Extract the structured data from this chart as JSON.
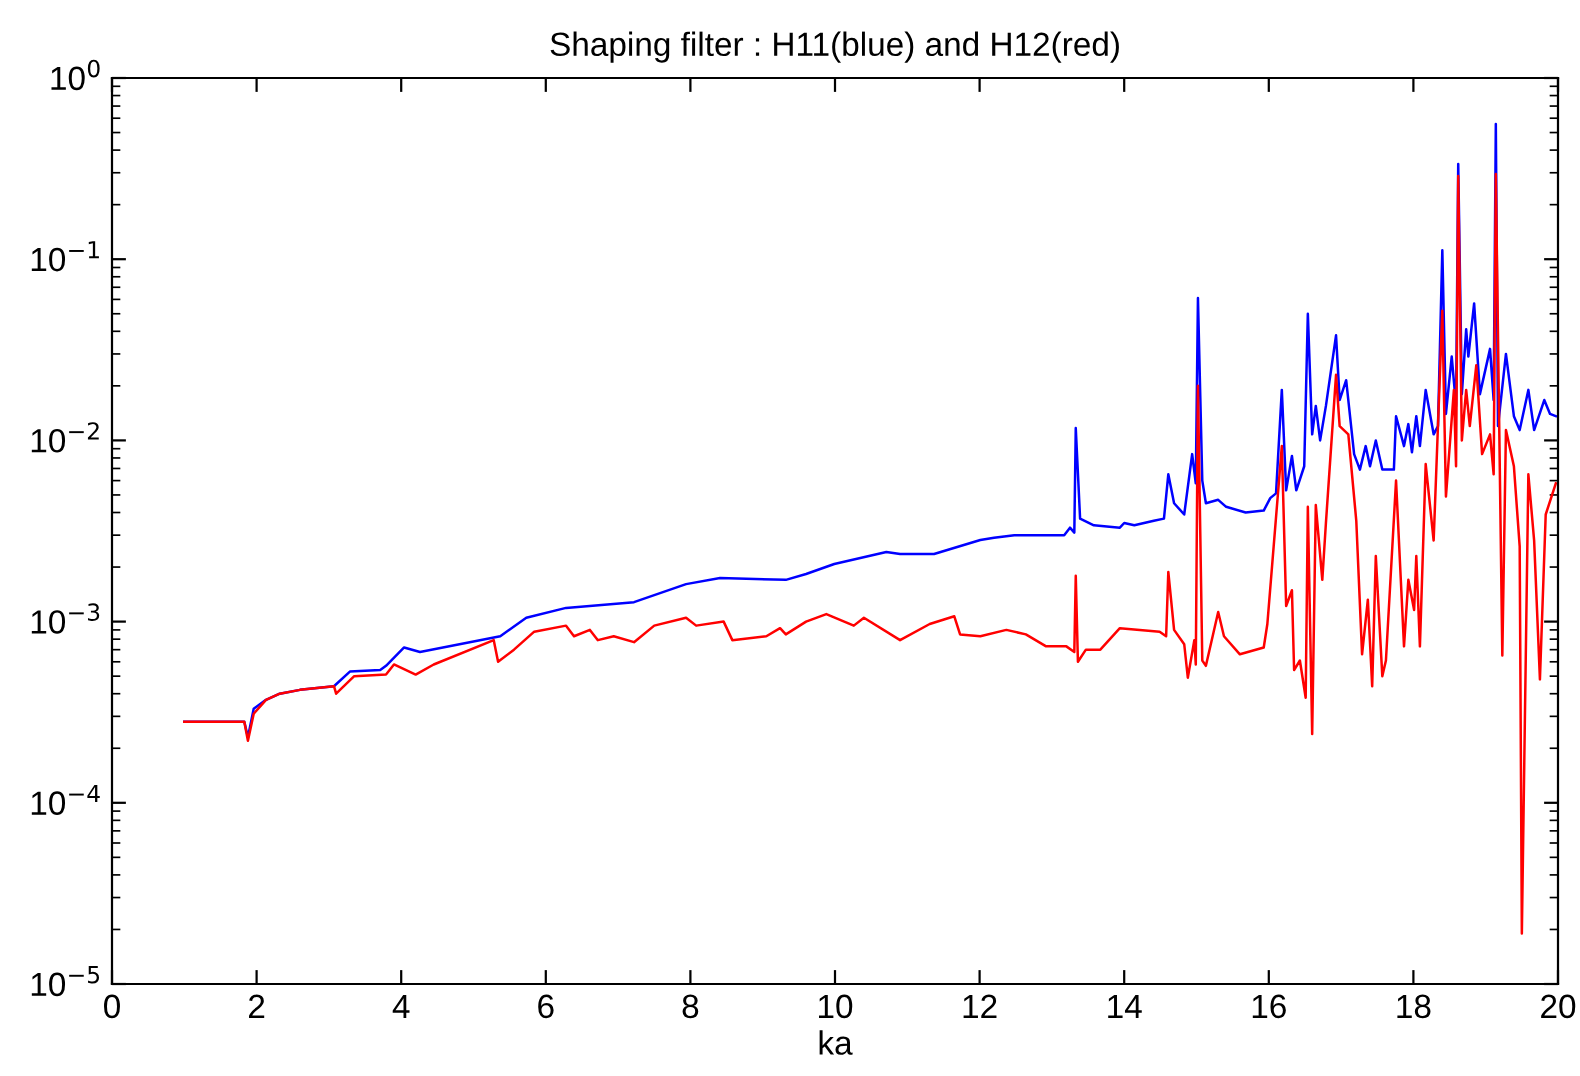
{
  "chart_data": {
    "type": "line",
    "title": "Shaping filter : H11(blue) and H12(red)",
    "xlabel": "ka",
    "log": "y",
    "xlim": [
      0,
      20
    ],
    "ylim": [
      1e-05,
      1
    ],
    "xticks": [
      0,
      2,
      4,
      6,
      8,
      10,
      12,
      14,
      16,
      18,
      20
    ],
    "yticks": [
      {
        "value": 1e-05,
        "label": "10$^{−5}$"
      },
      {
        "value": 0.0001,
        "label": "10$^{−4}$"
      },
      {
        "value": 0.001,
        "label": "10$^{−3}$"
      },
      {
        "value": 0.01,
        "label": "10$^{−2}$"
      },
      {
        "value": 0.1,
        "label": "10$^{−1}$"
      },
      {
        "value": 1,
        "label": "10$^{0}$"
      }
    ],
    "grid": false,
    "marker": "none",
    "line_style": "solid",
    "series": [
      {
        "color": "#0000ff",
        "x": [
          1.0,
          1.83,
          1.88,
          1.96,
          2.13,
          2.32,
          2.6,
          3.07,
          3.29,
          3.71,
          3.79,
          4.04,
          4.26,
          5.37,
          5.73,
          6.28,
          7.22,
          7.94,
          8.41,
          9.32,
          9.6,
          9.99,
          10.71,
          10.9,
          11.37,
          12.01,
          12.2,
          12.48,
          13.17,
          13.25,
          13.31,
          13.33,
          13.39,
          13.58,
          13.94,
          14.0,
          14.14,
          14.41,
          14.55,
          14.61,
          14.69,
          14.83,
          14.94,
          14.99,
          15.02,
          15.08,
          15.13,
          15.3,
          15.41,
          15.68,
          15.93,
          16.02,
          16.1,
          16.18,
          16.24,
          16.32,
          16.38,
          16.49,
          16.54,
          16.6,
          16.65,
          16.71,
          16.79,
          16.93,
          16.98,
          17.07,
          17.18,
          17.26,
          17.34,
          17.4,
          17.48,
          17.57,
          17.73,
          17.76,
          17.87,
          17.93,
          17.98,
          18.04,
          18.09,
          18.17,
          18.28,
          18.34,
          18.4,
          18.45,
          18.53,
          18.59,
          18.62,
          18.67,
          18.73,
          18.76,
          18.84,
          18.92,
          19.06,
          19.11,
          19.14,
          19.17,
          19.28,
          19.39,
          19.47,
          19.59,
          19.67,
          19.81,
          19.89,
          19.97
        ],
        "values": [
          0.00028,
          0.00028,
          0.00023,
          0.00033,
          0.00037,
          0.0004,
          0.00042,
          0.00044,
          0.00053,
          0.00054,
          0.00057,
          0.00072,
          0.00068,
          0.00083,
          0.00105,
          0.00119,
          0.00128,
          0.00161,
          0.00174,
          0.0017,
          0.00183,
          0.00208,
          0.00242,
          0.00236,
          0.00236,
          0.00282,
          0.0029,
          0.003,
          0.003,
          0.0033,
          0.0031,
          0.0117,
          0.0037,
          0.0034,
          0.0033,
          0.0035,
          0.0034,
          0.0036,
          0.0037,
          0.0065,
          0.0045,
          0.0039,
          0.0084,
          0.0058,
          0.061,
          0.006,
          0.0045,
          0.0047,
          0.0043,
          0.004,
          0.0041,
          0.0048,
          0.0051,
          0.019,
          0.0053,
          0.0082,
          0.0053,
          0.0072,
          0.05,
          0.0108,
          0.0155,
          0.01,
          0.0155,
          0.038,
          0.0167,
          0.0215,
          0.0084,
          0.0069,
          0.0093,
          0.0072,
          0.01,
          0.0069,
          0.0069,
          0.0136,
          0.0093,
          0.0123,
          0.0086,
          0.0136,
          0.0093,
          0.019,
          0.0108,
          0.012,
          0.112,
          0.014,
          0.029,
          0.0155,
          0.335,
          0.018,
          0.041,
          0.029,
          0.057,
          0.018,
          0.032,
          0.0167,
          0.557,
          0.012,
          0.03,
          0.0136,
          0.0114,
          0.019,
          0.0114,
          0.0167,
          0.014,
          0.0136
        ]
      },
      {
        "color": "#ff0000",
        "x": [
          1.0,
          1.83,
          1.88,
          1.96,
          2.13,
          2.32,
          2.6,
          3.07,
          3.1,
          3.35,
          3.79,
          3.9,
          4.2,
          4.45,
          5.28,
          5.34,
          5.56,
          5.84,
          6.28,
          6.39,
          6.61,
          6.72,
          6.94,
          7.22,
          7.5,
          7.94,
          8.08,
          8.46,
          8.58,
          9.05,
          9.24,
          9.32,
          9.6,
          9.88,
          10.26,
          10.4,
          10.9,
          11.31,
          11.65,
          11.73,
          12.01,
          12.37,
          12.64,
          12.92,
          13.2,
          13.31,
          13.33,
          13.36,
          13.47,
          13.67,
          13.94,
          14.49,
          14.58,
          14.61,
          14.69,
          14.83,
          14.88,
          14.97,
          14.99,
          15.02,
          15.08,
          15.13,
          15.3,
          15.38,
          15.6,
          15.93,
          15.98,
          16.18,
          16.24,
          16.32,
          16.35,
          16.43,
          16.51,
          16.54,
          16.6,
          16.65,
          16.74,
          16.79,
          16.93,
          16.98,
          17.1,
          17.21,
          17.29,
          17.37,
          17.43,
          17.48,
          17.57,
          17.62,
          17.76,
          17.87,
          17.93,
          18.01,
          18.04,
          18.09,
          18.17,
          18.28,
          18.4,
          18.45,
          18.56,
          18.59,
          18.62,
          18.67,
          18.73,
          18.78,
          18.87,
          18.95,
          19.06,
          19.11,
          19.14,
          19.23,
          19.28,
          19.39,
          19.47,
          19.5,
          19.59,
          19.67,
          19.75,
          19.83,
          19.97
        ],
        "values": [
          0.00028,
          0.00028,
          0.00022,
          0.00031,
          0.00037,
          0.0004,
          0.00042,
          0.00044,
          0.0004,
          0.0005,
          0.00051,
          0.00058,
          0.00051,
          0.00058,
          0.00079,
          0.0006,
          0.0007,
          0.00088,
          0.00095,
          0.00083,
          0.0009,
          0.00079,
          0.00083,
          0.00077,
          0.00095,
          0.00105,
          0.00095,
          0.001,
          0.00079,
          0.00083,
          0.00092,
          0.00085,
          0.001,
          0.0011,
          0.00095,
          0.00105,
          0.00079,
          0.00097,
          0.00107,
          0.00085,
          0.00083,
          0.0009,
          0.00085,
          0.00073,
          0.00073,
          0.00068,
          0.00179,
          0.0006,
          0.0007,
          0.0007,
          0.00092,
          0.00088,
          0.00083,
          0.00188,
          0.0009,
          0.00075,
          0.00049,
          0.00079,
          0.00058,
          0.02,
          0.00061,
          0.00057,
          0.00113,
          0.00083,
          0.00066,
          0.00072,
          0.00097,
          0.0093,
          0.00122,
          0.00149,
          0.00054,
          0.00061,
          0.00038,
          0.0043,
          0.00024,
          0.0044,
          0.0017,
          0.0035,
          0.023,
          0.012,
          0.0108,
          0.0036,
          0.00066,
          0.00132,
          0.00044,
          0.0023,
          0.0005,
          0.00061,
          0.006,
          0.00073,
          0.0017,
          0.00116,
          0.0023,
          0.00073,
          0.0074,
          0.0028,
          0.052,
          0.0049,
          0.019,
          0.0072,
          0.288,
          0.01,
          0.019,
          0.012,
          0.026,
          0.0084,
          0.0108,
          0.0065,
          0.295,
          0.00065,
          0.0114,
          0.0072,
          0.0026,
          1.9e-05,
          0.0065,
          0.0028,
          0.00048,
          0.0039,
          0.0058
        ]
      }
    ]
  }
}
